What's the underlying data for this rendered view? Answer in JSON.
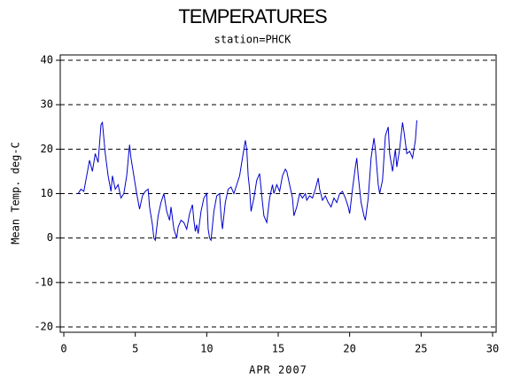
{
  "chart_data": {
    "type": "line",
    "title": "TEMPERATURES",
    "subtitle": "station=PHCK",
    "x_label": "APR 2007",
    "y_label": "Mean Temp. deg-C",
    "xlim": [
      -0.25,
      30.25
    ],
    "xticks": [
      0,
      5,
      10,
      15,
      20,
      25,
      30
    ],
    "ylim": [
      -21.2,
      41.2
    ],
    "yticks": [
      40,
      30,
      20,
      10,
      0,
      -10,
      -20
    ],
    "grid": true,
    "series": [
      {
        "name": "Mean Temp",
        "color": "#0000cc",
        "x": [
          1.0,
          1.2,
          1.4,
          1.6,
          1.8,
          2.0,
          2.2,
          2.4,
          2.6,
          2.7,
          2.9,
          3.1,
          3.3,
          3.4,
          3.6,
          3.8,
          4.0,
          4.2,
          4.4,
          4.6,
          4.7,
          4.9,
          5.1,
          5.3,
          5.5,
          5.7,
          5.9,
          6.0,
          6.2,
          6.3,
          6.4,
          6.6,
          6.8,
          7.0,
          7.2,
          7.4,
          7.5,
          7.7,
          7.9,
          8.0,
          8.2,
          8.4,
          8.6,
          8.8,
          9.0,
          9.1,
          9.2,
          9.3,
          9.4,
          9.6,
          9.8,
          10.0,
          10.1,
          10.2,
          10.3,
          10.5,
          10.7,
          10.9,
          11.0,
          11.1,
          11.3,
          11.5,
          11.7,
          11.9,
          12.1,
          12.3,
          12.5,
          12.7,
          12.8,
          12.9,
          13.0,
          13.1,
          13.3,
          13.5,
          13.7,
          13.9,
          14.0,
          14.2,
          14.4,
          14.6,
          14.7,
          14.9,
          15.1,
          15.3,
          15.5,
          15.6,
          15.8,
          16.0,
          16.1,
          16.3,
          16.5,
          16.7,
          16.9,
          17.0,
          17.2,
          17.4,
          17.6,
          17.8,
          17.9,
          18.1,
          18.3,
          18.5,
          18.7,
          18.9,
          19.1,
          19.3,
          19.5,
          19.7,
          19.9,
          20.0,
          20.2,
          20.4,
          20.5,
          20.6,
          20.8,
          21.0,
          21.1,
          21.3,
          21.5,
          21.7,
          21.8,
          22.0,
          22.1,
          22.3,
          22.5,
          22.7,
          22.8,
          23.0,
          23.2,
          23.3,
          23.5,
          23.7,
          23.8,
          24.0,
          24.2,
          24.4,
          24.6,
          24.7
        ],
        "values": [
          10,
          11,
          10.5,
          14,
          17.5,
          15,
          19,
          17,
          25.5,
          26,
          19,
          14,
          10.5,
          14,
          11,
          12,
          9,
          10,
          14,
          21,
          18,
          14,
          10,
          6.5,
          9.5,
          10.5,
          11,
          7,
          3,
          0,
          -0.5,
          5,
          8,
          10,
          6,
          4,
          7,
          2,
          0,
          2.5,
          4,
          3.5,
          2,
          5.5,
          7.5,
          4,
          1.5,
          3,
          1,
          6,
          9,
          10,
          2,
          0,
          -0.5,
          6,
          9.5,
          10,
          5,
          2,
          8,
          11,
          11.5,
          10,
          12,
          14,
          18,
          22,
          20,
          14,
          11,
          6,
          9,
          13,
          14.5,
          8,
          5,
          3.5,
          9,
          12,
          10,
          12,
          10.5,
          14,
          15.5,
          15,
          12,
          9,
          5,
          7,
          10,
          9,
          10,
          8.5,
          9.5,
          9,
          11,
          13.5,
          11,
          8.5,
          9.5,
          8,
          7,
          9,
          8,
          10,
          10.5,
          9,
          7,
          5.5,
          11,
          16,
          18,
          14,
          8,
          5,
          4,
          9,
          18,
          22.5,
          20,
          12,
          10,
          13,
          23,
          25,
          19,
          15,
          20,
          16,
          20,
          26,
          24,
          19,
          19.5,
          18,
          22,
          26.5
        ]
      }
    ]
  }
}
